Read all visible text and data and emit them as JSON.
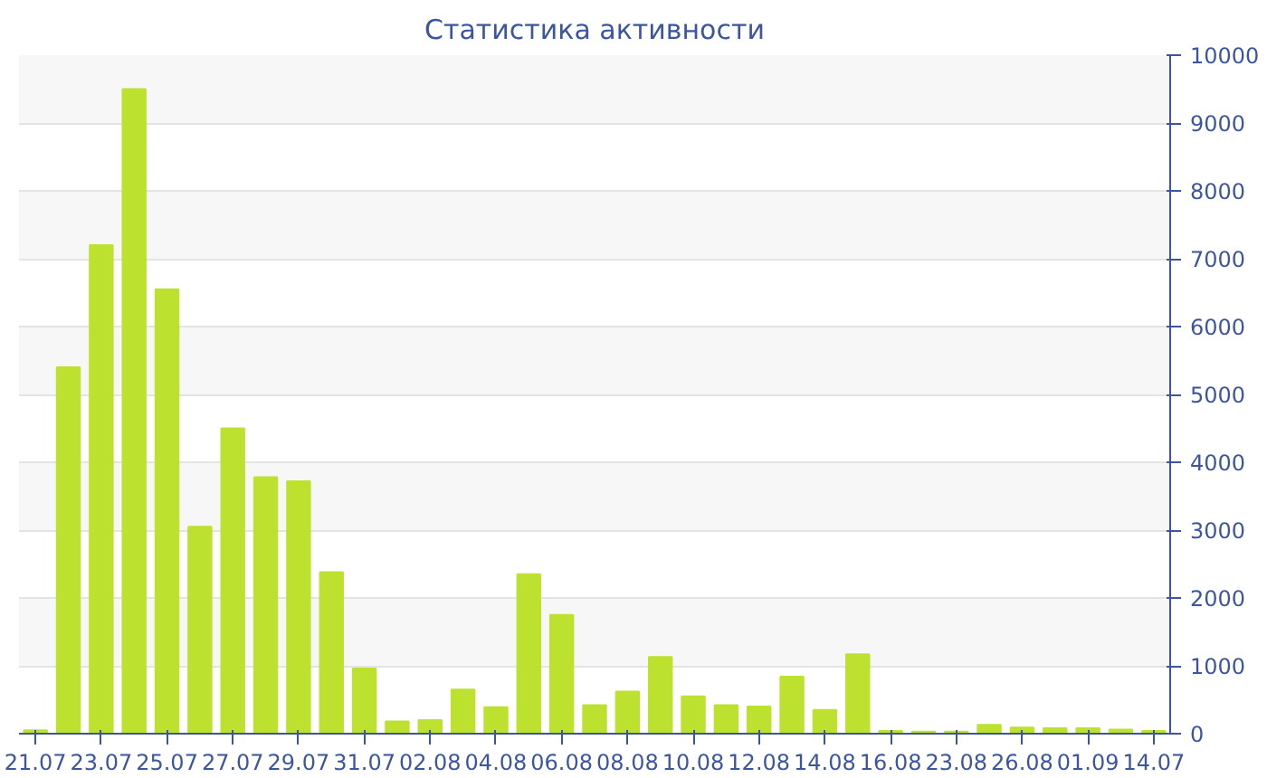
{
  "chart_data": {
    "type": "bar",
    "title": "Статистика активности",
    "categories": [
      "21.07",
      null,
      "23.07",
      null,
      "25.07",
      null,
      "27.07",
      null,
      "29.07",
      null,
      "31.07",
      null,
      "02.08",
      null,
      "04.08",
      null,
      "06.08",
      null,
      "08.08",
      null,
      "10.08",
      null,
      "12.08",
      null,
      "14.08",
      null,
      "16.08",
      null,
      "23.08",
      null,
      "26.08",
      null,
      "01.09",
      null,
      "14.07"
    ],
    "values": [
      50,
      5400,
      7200,
      9500,
      6550,
      3050,
      4500,
      3780,
      3720,
      2380,
      960,
      180,
      200,
      650,
      390,
      2350,
      1750,
      420,
      620,
      1130,
      550,
      420,
      400,
      840,
      350,
      1170,
      40,
      30,
      30,
      130,
      90,
      80,
      80,
      60,
      40
    ],
    "color": "#bde12f",
    "ylim": [
      0,
      10000
    ],
    "yticks": [
      0,
      1000,
      2000,
      3000,
      4000,
      5000,
      6000,
      7000,
      8000,
      9000,
      10000
    ],
    "grid": "y"
  }
}
